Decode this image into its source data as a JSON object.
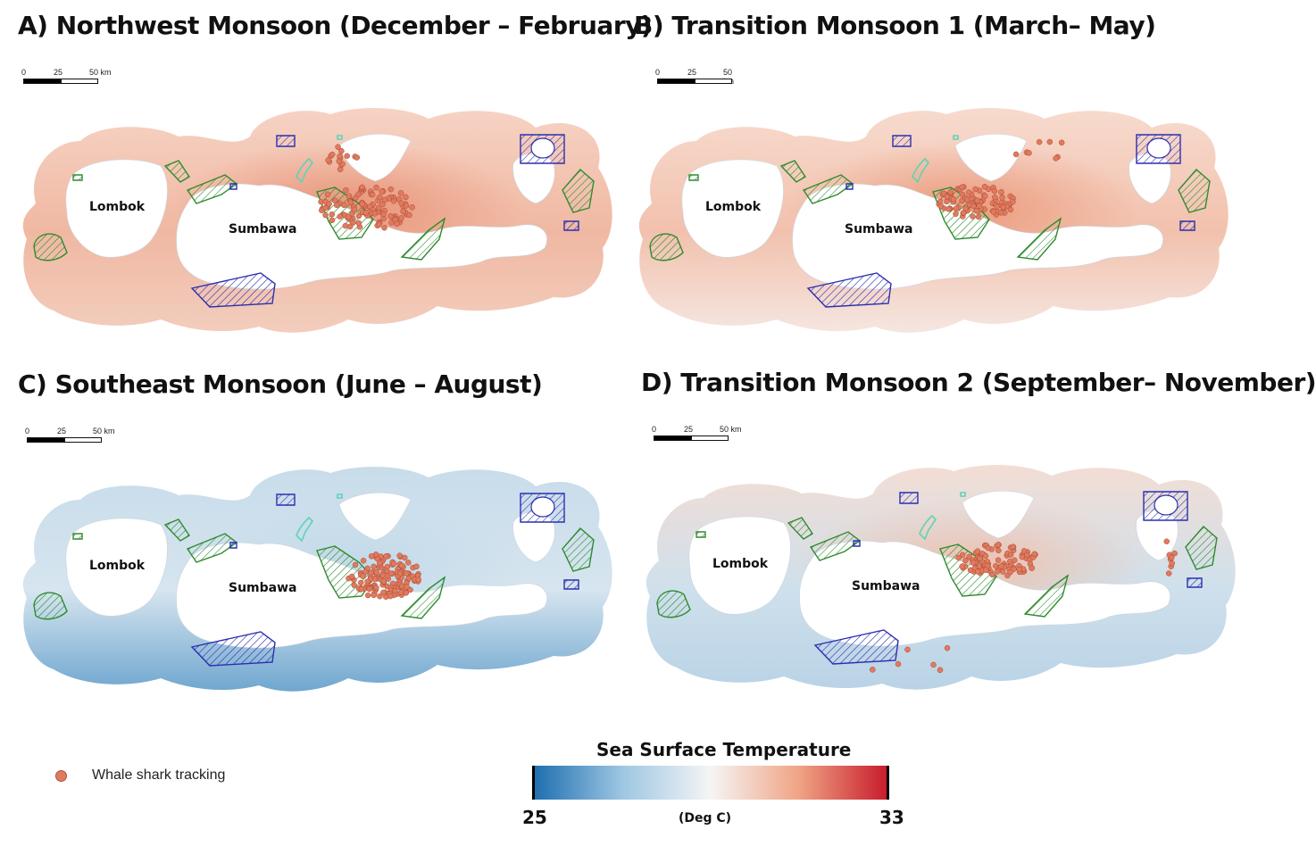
{
  "panels": [
    {
      "id": "A",
      "title": "A) Northwest Monsoon (December – February)",
      "theme": "warm",
      "colors": {
        "outer": "#f6d3c4",
        "mid": "#f0b8a2",
        "hot": "#e89478",
        "south": "#f3cdbd"
      }
    },
    {
      "id": "B",
      "title": "B) Transition Monsoon 1 (March– May)",
      "theme": "warm2",
      "colors": {
        "outer": "#f7dbce",
        "mid": "#f2c1ad",
        "hot": "#eb9a7c",
        "south": "#f5e6e0"
      }
    },
    {
      "id": "C",
      "title": "C) Southeast Monsoon (June – August)",
      "theme": "cool",
      "colors": {
        "outer": "#c8dcea",
        "mid": "#d6e5ef",
        "hot": "#c2d9e8",
        "south": "#6fa6cf"
      }
    },
    {
      "id": "D",
      "title": "D) Transition Monsoon 2 (September– November)",
      "theme": "mixed",
      "colors": {
        "outer": "#f3ddd4",
        "mid": "#cfe0ec",
        "hot": "#efc0ac",
        "south": "#b9d3e6"
      }
    }
  ],
  "scalebar": {
    "ticks": [
      "0",
      "25",
      "50 km"
    ]
  },
  "islands": {
    "west": "Lombok",
    "east": "Sumbawa"
  },
  "legend": {
    "tracking_label": "Whale shark tracking",
    "tracking_color": "#e07a5f"
  },
  "colorbar": {
    "title": "Sea Surface Temperature",
    "min": "25",
    "max": "33",
    "unit": "(Deg C)",
    "stops": [
      "#1f6fb0",
      "#9ec7e3",
      "#f5f5f5",
      "#f0a485",
      "#c81d2c"
    ]
  },
  "zone_colors": {
    "green": "#2e8b2e",
    "blue": "#2b2fb0",
    "teal": "#5fd3b5"
  }
}
